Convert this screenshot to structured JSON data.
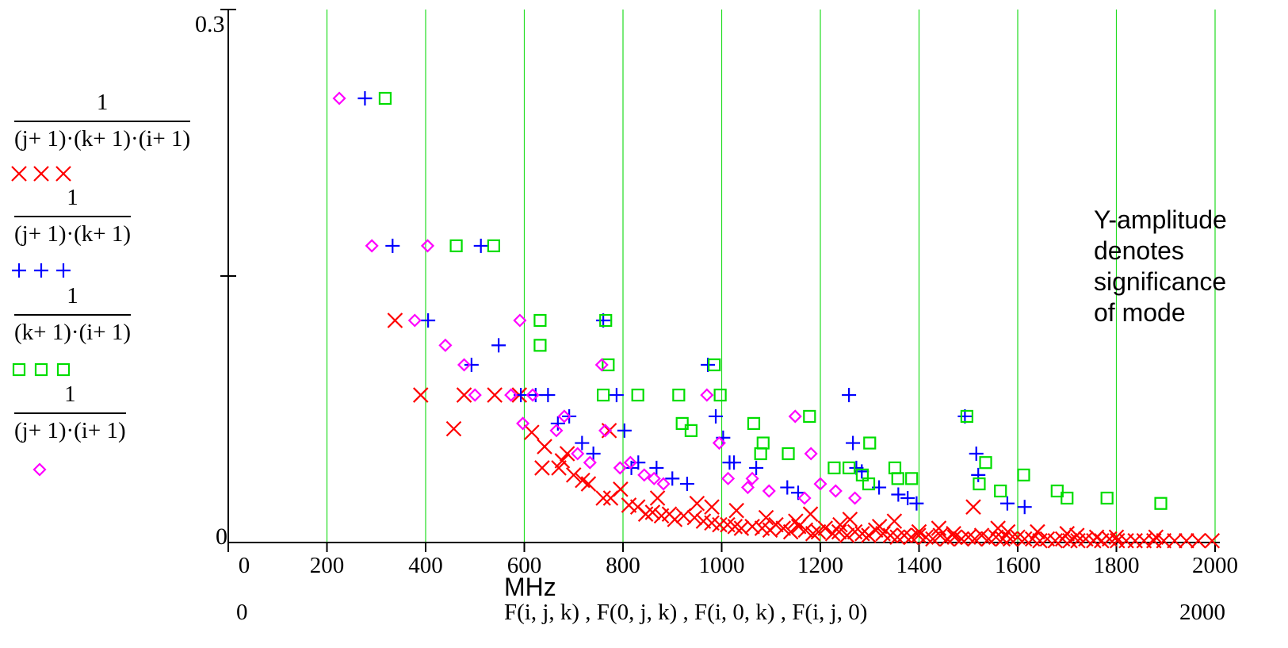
{
  "chart_data": {
    "type": "scatter",
    "xlim": [
      0,
      2000
    ],
    "ylim": [
      0,
      0.3
    ],
    "x_ticks": [
      0,
      200,
      400,
      600,
      800,
      1000,
      1200,
      1400,
      1600,
      1800,
      2000
    ],
    "x_tick_labels": [
      "0",
      "200",
      "400",
      "600",
      "800",
      "1000",
      "1200",
      "1400",
      "1600",
      "1800",
      "2000"
    ],
    "y_tick_labels": {
      "top": "0.3",
      "bottom": "0"
    },
    "y_ticks_unlabeled": [
      0.15
    ],
    "grid": "vertical lines at x ticks",
    "xlabel": "MHz",
    "x_expression": "F(i, j, k) , F(0, j, k) , F(i, 0, k) , F(i, j, 0)",
    "x_range_low_label": "0",
    "x_range_high_label": "2000",
    "series": [
      {
        "expression_numerator": "1",
        "expression_denominator": "(j+ 1)·(k+ 1)·(i+ 1)",
        "marker": "x",
        "color": "#ff0000",
        "points": [
          [
            338,
            0.125
          ],
          [
            390,
            0.083
          ],
          [
            457,
            0.064
          ],
          [
            478,
            0.083
          ],
          [
            540,
            0.083
          ],
          [
            590,
            0.083
          ],
          [
            615,
            0.062
          ],
          [
            636,
            0.042
          ],
          [
            641,
            0.054
          ],
          [
            670,
            0.042
          ],
          [
            677,
            0.046
          ],
          [
            687,
            0.05
          ],
          [
            700,
            0.038
          ],
          [
            718,
            0.035
          ],
          [
            730,
            0.033
          ],
          [
            760,
            0.025
          ],
          [
            772,
            0.063
          ],
          [
            775,
            0.025
          ],
          [
            795,
            0.03
          ],
          [
            812,
            0.021
          ],
          [
            830,
            0.02
          ],
          [
            846,
            0.016
          ],
          [
            860,
            0.017
          ],
          [
            878,
            0.015
          ],
          [
            894,
            0.016
          ],
          [
            905,
            0.013
          ],
          [
            923,
            0.015
          ],
          [
            945,
            0.014
          ],
          [
            963,
            0.012
          ],
          [
            980,
            0.011
          ],
          [
            996,
            0.01
          ],
          [
            1012,
            0.01
          ],
          [
            1027,
            0.009
          ],
          [
            1040,
            0.008
          ],
          [
            1062,
            0.009
          ],
          [
            1082,
            0.008
          ],
          [
            1098,
            0.007
          ],
          [
            1110,
            0.01
          ],
          [
            1125,
            0.008
          ],
          [
            1140,
            0.006
          ],
          [
            1156,
            0.009
          ],
          [
            1170,
            0.007
          ],
          [
            1185,
            0.005
          ],
          [
            1196,
            0.006
          ],
          [
            1210,
            0.008
          ],
          [
            1225,
            0.005
          ],
          [
            1238,
            0.006
          ],
          [
            1254,
            0.004
          ],
          [
            1270,
            0.006
          ],
          [
            1285,
            0.005
          ],
          [
            1298,
            0.004
          ],
          [
            1312,
            0.007
          ],
          [
            1327,
            0.005
          ],
          [
            1342,
            0.004
          ],
          [
            1356,
            0.003
          ],
          [
            1370,
            0.004
          ],
          [
            1384,
            0.003
          ],
          [
            1399,
            0.004
          ],
          [
            1414,
            0.003
          ],
          [
            1428,
            0.002
          ],
          [
            1443,
            0.004
          ],
          [
            1457,
            0.002
          ],
          [
            1472,
            0.003
          ],
          [
            1486,
            0.002
          ],
          [
            1500,
            0.003
          ],
          [
            1513,
            0.002
          ],
          [
            1527,
            0.004
          ],
          [
            1541,
            0.002
          ],
          [
            1556,
            0.003
          ],
          [
            1570,
            0.002
          ],
          [
            1585,
            0.002
          ],
          [
            1600,
            0.003
          ],
          [
            1614,
            0.002
          ],
          [
            1630,
            0.002
          ],
          [
            1645,
            0.001
          ],
          [
            1660,
            0.002
          ],
          [
            1676,
            0.001
          ],
          [
            1691,
            0.002
          ],
          [
            1706,
            0.001
          ],
          [
            1722,
            0.001
          ],
          [
            1738,
            0.002
          ],
          [
            1754,
            0.001
          ],
          [
            1770,
            0.001
          ],
          [
            1786,
            0.002
          ],
          [
            1802,
            0.001
          ],
          [
            1820,
            0.001
          ],
          [
            1838,
            0.001
          ],
          [
            1856,
            0.001
          ],
          [
            1876,
            0.001
          ],
          [
            1896,
            0.001
          ],
          [
            1918,
            0.001
          ],
          [
            1942,
            0.001
          ],
          [
            1966,
            0.001
          ],
          [
            1994,
            0.001
          ],
          [
            1090,
            0.014
          ],
          [
            1150,
            0.012
          ],
          [
            1240,
            0.01
          ],
          [
            1320,
            0.009
          ],
          [
            1400,
            0.006
          ],
          [
            1510,
            0.02
          ],
          [
            1560,
            0.008
          ],
          [
            1640,
            0.006
          ],
          [
            1720,
            0.004
          ],
          [
            1800,
            0.003
          ],
          [
            980,
            0.02
          ],
          [
            1030,
            0.018
          ],
          [
            870,
            0.025
          ],
          [
            950,
            0.022
          ],
          [
            1180,
            0.016
          ],
          [
            1260,
            0.013
          ],
          [
            1350,
            0.012
          ],
          [
            1440,
            0.008
          ],
          [
            1470,
            0.005
          ],
          [
            1580,
            0.006
          ],
          [
            1700,
            0.005
          ],
          [
            1760,
            0.003
          ],
          [
            1880,
            0.003
          ]
        ]
      },
      {
        "expression_numerator": "1",
        "expression_denominator": "(j+ 1)·(k+ 1)",
        "marker": "+",
        "color": "#0000ff",
        "points": [
          [
            277,
            0.25
          ],
          [
            333,
            0.167
          ],
          [
            405,
            0.125
          ],
          [
            512,
            0.167
          ],
          [
            548,
            0.111
          ],
          [
            493,
            0.1
          ],
          [
            593,
            0.083
          ],
          [
            623,
            0.083
          ],
          [
            648,
            0.083
          ],
          [
            668,
            0.067
          ],
          [
            691,
            0.071
          ],
          [
            717,
            0.056
          ],
          [
            740,
            0.05
          ],
          [
            760,
            0.125
          ],
          [
            787,
            0.083
          ],
          [
            803,
            0.063
          ],
          [
            817,
            0.042
          ],
          [
            831,
            0.045
          ],
          [
            868,
            0.042
          ],
          [
            900,
            0.036
          ],
          [
            930,
            0.033
          ],
          [
            972,
            0.1
          ],
          [
            988,
            0.071
          ],
          [
            1003,
            0.059
          ],
          [
            1016,
            0.045
          ],
          [
            1025,
            0.045
          ],
          [
            1070,
            0.042
          ],
          [
            1133,
            0.031
          ],
          [
            1155,
            0.028
          ],
          [
            1258,
            0.083
          ],
          [
            1266,
            0.056
          ],
          [
            1273,
            0.042
          ],
          [
            1284,
            0.04
          ],
          [
            1319,
            0.031
          ],
          [
            1358,
            0.027
          ],
          [
            1377,
            0.025
          ],
          [
            1395,
            0.022
          ],
          [
            1493,
            0.071
          ],
          [
            1516,
            0.05
          ],
          [
            1520,
            0.038
          ],
          [
            1579,
            0.022
          ],
          [
            1614,
            0.02
          ]
        ]
      },
      {
        "expression_numerator": "1",
        "expression_denominator": "(k+ 1)·(i+ 1)",
        "marker": "square",
        "color": "#00dd00",
        "points": [
          [
            318,
            0.25
          ],
          [
            462,
            0.167
          ],
          [
            538,
            0.167
          ],
          [
            632,
            0.125
          ],
          [
            632,
            0.111
          ],
          [
            765,
            0.125
          ],
          [
            770,
            0.1
          ],
          [
            760,
            0.083
          ],
          [
            830,
            0.083
          ],
          [
            913,
            0.083
          ],
          [
            920,
            0.067
          ],
          [
            938,
            0.063
          ],
          [
            985,
            0.1
          ],
          [
            997,
            0.083
          ],
          [
            1065,
            0.067
          ],
          [
            1084,
            0.056
          ],
          [
            1079,
            0.05
          ],
          [
            1135,
            0.05
          ],
          [
            1178,
            0.071
          ],
          [
            1228,
            0.042
          ],
          [
            1258,
            0.042
          ],
          [
            1285,
            0.038
          ],
          [
            1298,
            0.033
          ],
          [
            1300,
            0.056
          ],
          [
            1351,
            0.042
          ],
          [
            1357,
            0.036
          ],
          [
            1385,
            0.036
          ],
          [
            1497,
            0.071
          ],
          [
            1535,
            0.045
          ],
          [
            1522,
            0.033
          ],
          [
            1565,
            0.029
          ],
          [
            1612,
            0.038
          ],
          [
            1680,
            0.029
          ],
          [
            1700,
            0.025
          ],
          [
            1781,
            0.025
          ],
          [
            1890,
            0.022
          ]
        ]
      },
      {
        "expression_numerator": "1",
        "expression_denominator": "(j+ 1)·(i+ 1)",
        "marker": "diamond",
        "color": "#ff00ff",
        "points": [
          [
            225,
            0.25
          ],
          [
            291,
            0.167
          ],
          [
            404,
            0.167
          ],
          [
            378,
            0.125
          ],
          [
            440,
            0.111
          ],
          [
            478,
            0.1
          ],
          [
            500,
            0.083
          ],
          [
            573,
            0.083
          ],
          [
            617,
            0.083
          ],
          [
            597,
            0.067
          ],
          [
            591,
            0.125
          ],
          [
            665,
            0.063
          ],
          [
            681,
            0.071
          ],
          [
            708,
            0.05
          ],
          [
            733,
            0.045
          ],
          [
            757,
            0.1
          ],
          [
            764,
            0.063
          ],
          [
            794,
            0.042
          ],
          [
            815,
            0.045
          ],
          [
            843,
            0.038
          ],
          [
            863,
            0.036
          ],
          [
            882,
            0.033
          ],
          [
            970,
            0.083
          ],
          [
            995,
            0.056
          ],
          [
            1013,
            0.036
          ],
          [
            1053,
            0.031
          ],
          [
            1062,
            0.036
          ],
          [
            1096,
            0.029
          ],
          [
            1149,
            0.071
          ],
          [
            1168,
            0.025
          ],
          [
            1181,
            0.05
          ],
          [
            1200,
            0.033
          ],
          [
            1231,
            0.029
          ],
          [
            1270,
            0.025
          ]
        ]
      }
    ],
    "annotation": [
      "Y-amplitude",
      "denotes",
      "significance",
      "of mode"
    ]
  }
}
